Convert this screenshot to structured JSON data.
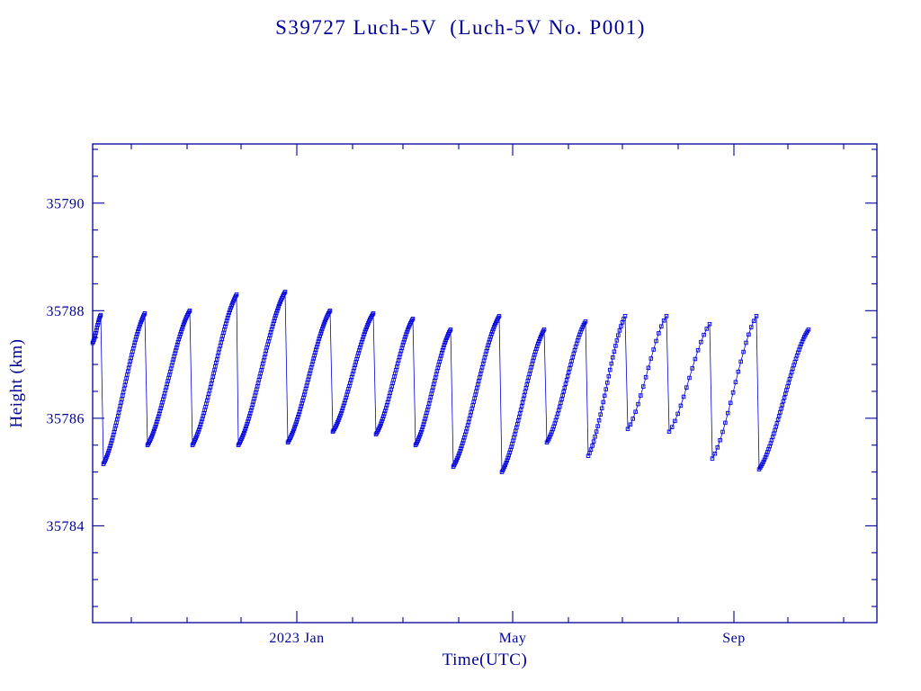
{
  "colors": {
    "text": "#000099",
    "frame": "#000099",
    "series": "#0000dd",
    "background": "#ffffff"
  },
  "chart_data": {
    "type": "line",
    "title": "S39727 Luch-5V  (Luch-5V No. P001)",
    "xlabel": "Time(UTC)",
    "ylabel": "Height (km)",
    "marker": "open-square",
    "pattern": "sawtooth",
    "legend": "none",
    "grid": false,
    "x_axis": {
      "units": "days from left edge of plot (approx. mid-Sep 2022)",
      "range_days": [
        0,
        436
      ],
      "major_ticks": [
        {
          "t": 113.5,
          "label": "2023 Jan"
        },
        {
          "t": 233.5,
          "label": "May"
        },
        {
          "t": 356.5,
          "label": "Sep"
        }
      ],
      "minor_ticks": [
        21.5,
        52.5,
        82.5,
        144.5,
        172.5,
        203.5,
        264.5,
        294.5,
        325.5,
        386.5,
        417.5
      ]
    },
    "y_axis": {
      "range": [
        35782.2,
        35791.1
      ],
      "major_ticks": [
        35784,
        35786,
        35788,
        35790
      ],
      "minor_step": 0.5
    },
    "segments": [
      {
        "t0": 0,
        "t1": 4.5,
        "y0": 35787.4,
        "y1": 35787.92,
        "n": 14
      },
      {
        "t0": 6,
        "t1": 29,
        "y0": 35785.15,
        "y1": 35787.95,
        "n": 55
      },
      {
        "t0": 30.5,
        "t1": 54,
        "y0": 35785.5,
        "y1": 35788.0,
        "n": 55
      },
      {
        "t0": 55.5,
        "t1": 80,
        "y0": 35785.5,
        "y1": 35788.3,
        "n": 55
      },
      {
        "t0": 81,
        "t1": 107,
        "y0": 35785.5,
        "y1": 35788.35,
        "n": 60
      },
      {
        "t0": 108.5,
        "t1": 132,
        "y0": 35785.55,
        "y1": 35788.0,
        "n": 55
      },
      {
        "t0": 133.5,
        "t1": 156,
        "y0": 35785.75,
        "y1": 35787.95,
        "n": 50
      },
      {
        "t0": 157.5,
        "t1": 178,
        "y0": 35785.7,
        "y1": 35787.85,
        "n": 45
      },
      {
        "t0": 179.5,
        "t1": 199,
        "y0": 35785.5,
        "y1": 35787.65,
        "n": 45
      },
      {
        "t0": 200.5,
        "t1": 226,
        "y0": 35785.1,
        "y1": 35787.9,
        "n": 55
      },
      {
        "t0": 227.5,
        "t1": 251,
        "y0": 35785.0,
        "y1": 35787.65,
        "n": 50
      },
      {
        "t0": 252.5,
        "t1": 274,
        "y0": 35785.55,
        "y1": 35787.8,
        "n": 40
      },
      {
        "t0": 275.5,
        "t1": 296,
        "y0": 35785.3,
        "y1": 35787.9,
        "n": 28
      },
      {
        "t0": 297.5,
        "t1": 319,
        "y0": 35785.8,
        "y1": 35787.9,
        "n": 16
      },
      {
        "t0": 320.5,
        "t1": 343,
        "y0": 35785.75,
        "y1": 35787.75,
        "n": 15
      },
      {
        "t0": 344.5,
        "t1": 369,
        "y0": 35785.25,
        "y1": 35787.9,
        "n": 18
      },
      {
        "t0": 370.5,
        "t1": 398,
        "y0": 35785.05,
        "y1": 35787.65,
        "n": 48
      }
    ]
  }
}
